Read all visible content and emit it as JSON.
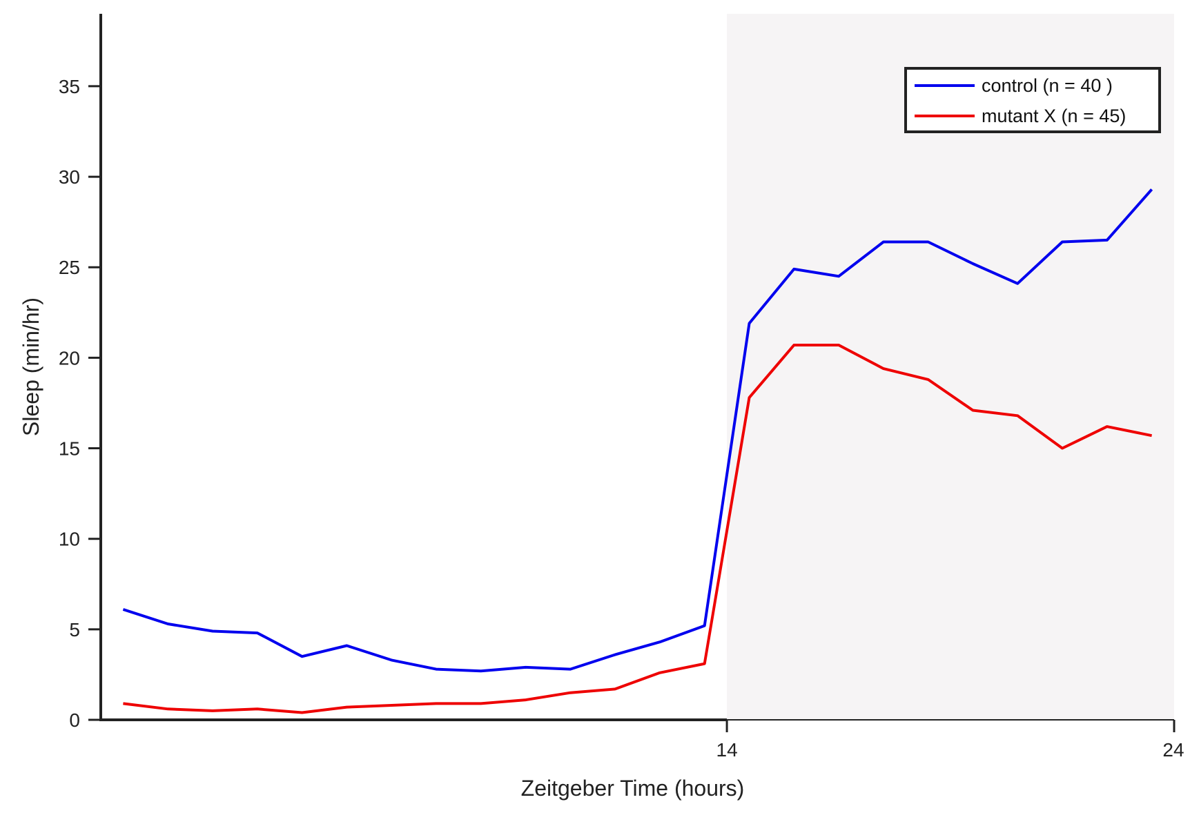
{
  "chart_data": {
    "type": "line",
    "title": "",
    "xlabel": "Zeitgeber Time (hours)",
    "ylabel": "Sleep (min/hr)",
    "xlim": [
      0,
      24
    ],
    "ylim": [
      0,
      39
    ],
    "x_ticks": [
      14,
      24
    ],
    "y_ticks": [
      0,
      5,
      10,
      15,
      20,
      25,
      30,
      35
    ],
    "grid": false,
    "legend_position": "top-right",
    "shaded_region": {
      "x_start": 14,
      "x_end": 24,
      "color": "#f6f4f5"
    },
    "x": [
      0.5,
      1.5,
      2.5,
      3.5,
      4.5,
      5.5,
      6.5,
      7.5,
      8.5,
      9.5,
      10.5,
      11.5,
      12.5,
      13.5,
      14.5,
      15.5,
      16.5,
      17.5,
      18.5,
      19.5,
      20.5,
      21.5,
      22.5,
      23.5
    ],
    "series": [
      {
        "name": "control  (n = 40 )",
        "color": "#0000ee",
        "values": [
          6.1,
          5.3,
          4.9,
          4.8,
          3.5,
          4.1,
          3.3,
          2.8,
          2.7,
          2.9,
          2.8,
          3.6,
          4.3,
          5.2,
          21.9,
          24.9,
          24.5,
          26.4,
          26.4,
          25.2,
          24.1,
          26.4,
          26.5,
          29.3
        ]
      },
      {
        "name": "mutant X (n = 45)",
        "color": "#ee0000",
        "values": [
          0.9,
          0.6,
          0.5,
          0.6,
          0.4,
          0.7,
          0.8,
          0.9,
          0.9,
          1.1,
          1.5,
          1.7,
          2.6,
          3.1,
          17.8,
          20.7,
          20.7,
          19.4,
          18.8,
          17.1,
          16.8,
          15.0,
          16.2,
          15.7
        ]
      }
    ]
  }
}
